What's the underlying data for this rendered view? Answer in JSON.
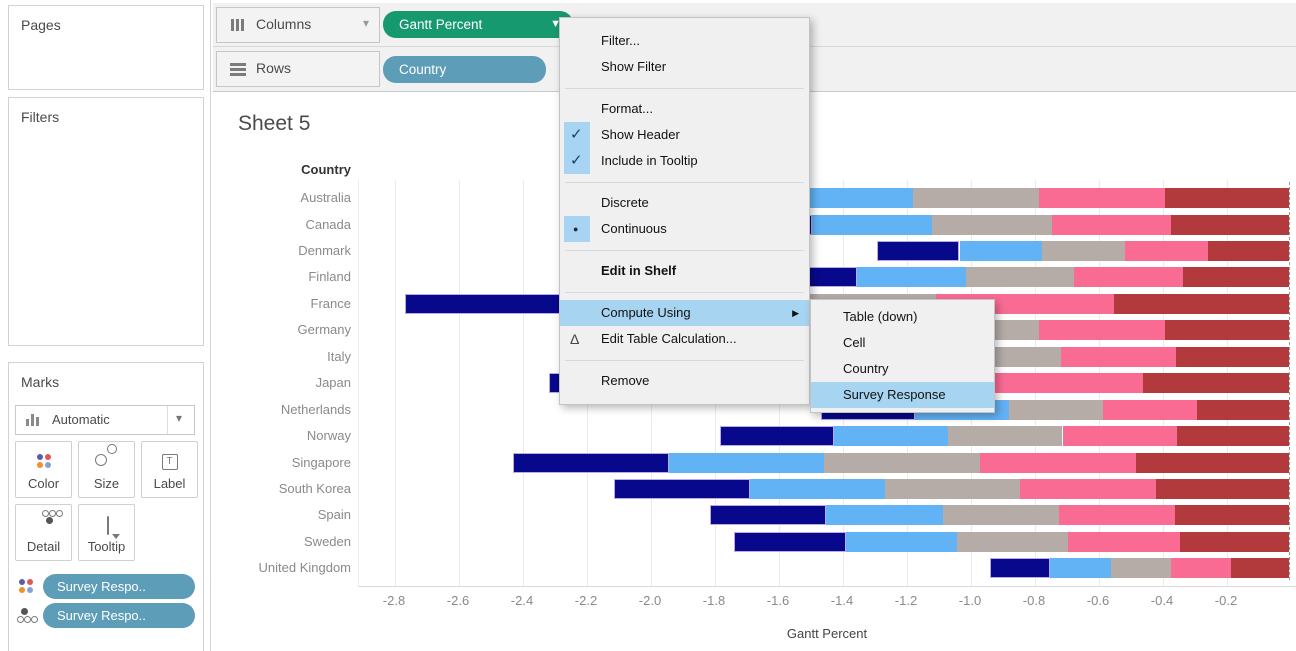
{
  "sidebar": {
    "pages_title": "Pages",
    "filters_title": "Filters",
    "marks": {
      "title": "Marks",
      "mark_type": "Automatic",
      "buttons": [
        "Color",
        "Size",
        "Label",
        "Detail",
        "Tooltip"
      ],
      "pills": [
        {
          "icon": "color-dots",
          "label": "Survey Respo.."
        },
        {
          "icon": "detail-dots",
          "label": "Survey Respo.."
        }
      ]
    }
  },
  "shelves": {
    "columns_label": "Columns",
    "rows_label": "Rows",
    "columns_pill": "Gantt Percent",
    "rows_pill": "Country"
  },
  "context_menu": {
    "items": [
      {
        "label": "Filter..."
      },
      {
        "label": "Show Filter"
      },
      {
        "separator": true
      },
      {
        "label": "Format..."
      },
      {
        "label": "Show Header",
        "checked": true
      },
      {
        "label": "Include in Tooltip",
        "checked": true
      },
      {
        "separator": true
      },
      {
        "label": "Discrete"
      },
      {
        "label": "Continuous",
        "radio": true
      },
      {
        "separator": true
      },
      {
        "label": "Edit in Shelf",
        "bold": true
      },
      {
        "separator": true
      },
      {
        "label": "Compute Using",
        "highlighted": true,
        "submenu_arrow": true
      },
      {
        "label": "Edit Table Calculation...",
        "icon": "delta"
      },
      {
        "separator": true
      },
      {
        "label": "Remove"
      }
    ]
  },
  "submenu": {
    "items": [
      {
        "label": "Table (down)"
      },
      {
        "label": "Cell"
      },
      {
        "label": "Country"
      },
      {
        "label": "Survey Response",
        "highlighted": true
      }
    ]
  },
  "colors": {
    "green_pill": "#17996F",
    "blue_pill": "#5E9DB8",
    "menu_highlight": "#A7D4F1",
    "menu_check_square": "#A6D4F2"
  },
  "chart_data": {
    "type": "bar",
    "orientation": "horizontal",
    "stacked": true,
    "title": "Sheet 5",
    "row_header": "Country",
    "xlabel": "Gantt Percent",
    "x_ticks": [
      -2.8,
      -2.6,
      -2.4,
      -2.2,
      -2.0,
      -1.8,
      -1.6,
      -1.4,
      -1.2,
      -1.0,
      -0.8,
      -0.6,
      -0.4,
      -0.2
    ],
    "xlim": [
      -2.9125,
      0.019
    ],
    "grid": true,
    "zero_line_dashed": true,
    "categories": [
      "Australia",
      "Canada",
      "Denmark",
      "Finland",
      "France",
      "Germany",
      "Italy",
      "Japan",
      "Netherlands",
      "Norway",
      "Singapore",
      "South Korea",
      "Spain",
      "Sweden",
      "United Kingdom"
    ],
    "num_segments_per_bar": 5,
    "segment_width_per_bar": [
      0.394,
      0.374,
      0.259,
      0.339,
      0.554,
      0.394,
      0.359,
      0.464,
      0.294,
      0.357,
      0.486,
      0.423,
      0.363,
      0.348,
      0.188
    ],
    "bar_extent_note": "each country bar is 5 equal-width stacked segments spanning from -(5 x segment_width) to 0.0",
    "series_colors": [
      "#08088C",
      "#62B2F6",
      "#B5ACA8",
      "#FA6B94",
      "#B33A3C"
    ],
    "series_color_names": [
      "navy",
      "light-blue",
      "gray",
      "pink",
      "dark-red"
    ]
  }
}
